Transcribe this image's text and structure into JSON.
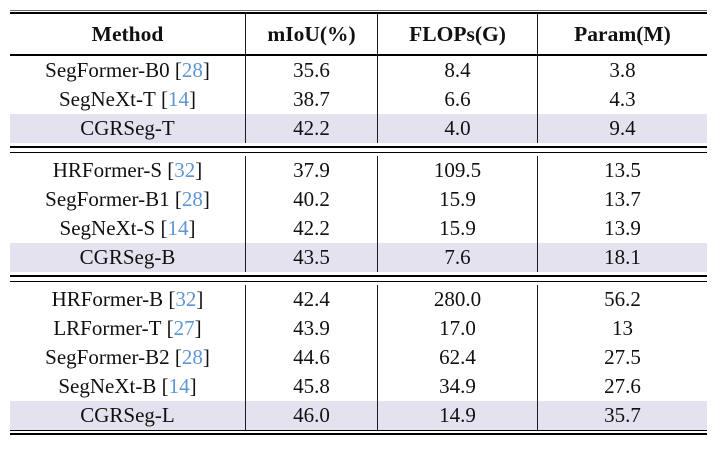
{
  "colors": {
    "highlight_row_bg": "#E4E2EE",
    "citation_blue": "#5E95D5"
  },
  "table": {
    "columns": [
      "Method",
      "mIoU(%)",
      "FLOPs(G)",
      "Param(M)"
    ],
    "groups": [
      {
        "rows": [
          {
            "method": "SegFormer-B0",
            "cite": "28",
            "miou": "35.6",
            "flops": "8.4",
            "params": "3.8",
            "highlight": false
          },
          {
            "method": "SegNeXt-T",
            "cite": "14",
            "miou": "38.7",
            "flops": "6.6",
            "params": "4.3",
            "highlight": false
          },
          {
            "method": "CGRSeg-T",
            "cite": null,
            "miou": "42.2",
            "flops": "4.0",
            "params": "9.4",
            "highlight": true
          }
        ]
      },
      {
        "rows": [
          {
            "method": "HRFormer-S",
            "cite": "32",
            "miou": "37.9",
            "flops": "109.5",
            "params": "13.5",
            "highlight": false
          },
          {
            "method": "SegFormer-B1",
            "cite": "28",
            "miou": "40.2",
            "flops": "15.9",
            "params": "13.7",
            "highlight": false
          },
          {
            "method": "SegNeXt-S",
            "cite": "14",
            "miou": "42.2",
            "flops": "15.9",
            "params": "13.9",
            "highlight": false
          },
          {
            "method": "CGRSeg-B",
            "cite": null,
            "miou": "43.5",
            "flops": "7.6",
            "params": "18.1",
            "highlight": true
          }
        ]
      },
      {
        "rows": [
          {
            "method": "HRFormer-B",
            "cite": "32",
            "miou": "42.4",
            "flops": "280.0",
            "params": "56.2",
            "highlight": false
          },
          {
            "method": "LRFormer-T",
            "cite": "27",
            "miou": "43.9",
            "flops": "17.0",
            "params": "13",
            "highlight": false
          },
          {
            "method": "SegFormer-B2",
            "cite": "28",
            "miou": "44.6",
            "flops": "62.4",
            "params": "27.5",
            "highlight": false
          },
          {
            "method": "SegNeXt-B",
            "cite": "14",
            "miou": "45.8",
            "flops": "34.9",
            "params": "27.6",
            "highlight": false
          },
          {
            "method": "CGRSeg-L",
            "cite": null,
            "miou": "46.0",
            "flops": "14.9",
            "params": "35.7",
            "highlight": true
          }
        ]
      }
    ]
  }
}
